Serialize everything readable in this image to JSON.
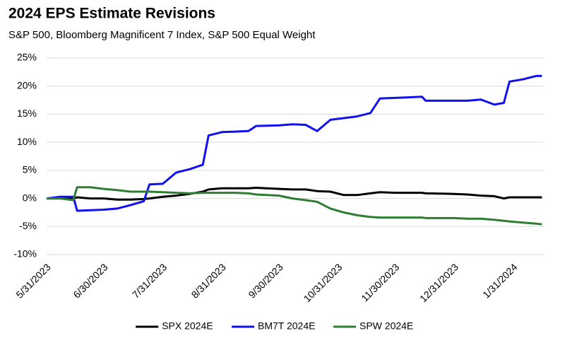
{
  "chart_data": {
    "type": "line",
    "title": "2024 EPS Estimate Revisions",
    "subtitle": "S&P 500, Bloomberg Magnificent 7 Index, S&P 500 Equal Weight",
    "x": [
      "5/31/2023",
      "6/7/2023",
      "6/14/2023",
      "6/16/2023",
      "6/23/2023",
      "6/30/2023",
      "7/7/2023",
      "7/14/2023",
      "7/21/2023",
      "7/24/2023",
      "7/31/2023",
      "8/7/2023",
      "8/14/2023",
      "8/21/2023",
      "8/24/2023",
      "8/31/2023",
      "9/7/2023",
      "9/14/2023",
      "9/18/2023",
      "9/30/2023",
      "10/7/2023",
      "10/14/2023",
      "10/20/2023",
      "10/27/2023",
      "11/3/2023",
      "11/10/2023",
      "11/17/2023",
      "11/22/2023",
      "11/30/2023",
      "12/7/2023",
      "12/14/2023",
      "12/16/2023",
      "12/31/2023",
      "1/7/2024",
      "1/14/2024",
      "1/21/2024",
      "1/26/2024",
      "1/29/2024",
      "2/5/2024",
      "2/12/2024",
      "2/15/2024"
    ],
    "series": [
      {
        "name": "SPX 2024E",
        "color": "#000000",
        "values": [
          0,
          0,
          0,
          0.2,
          0,
          0,
          -0.2,
          -0.2,
          -0.1,
          0,
          0.3,
          0.5,
          0.8,
          1.2,
          1.6,
          1.8,
          1.8,
          1.8,
          1.9,
          1.7,
          1.6,
          1.6,
          1.3,
          1.2,
          0.6,
          0.6,
          0.9,
          1.1,
          1.0,
          1.0,
          1.0,
          0.9,
          0.8,
          0.7,
          0.5,
          0.4,
          0,
          0.2,
          0.2,
          0.2,
          0.2
        ]
      },
      {
        "name": "BM7T 2024E",
        "color": "#1010f0",
        "values": [
          0,
          0.3,
          0.3,
          -2.2,
          -2.1,
          -2.0,
          -1.8,
          -1.2,
          -0.5,
          2.5,
          2.6,
          4.6,
          5.2,
          6.0,
          11.2,
          11.8,
          11.9,
          12.0,
          12.9,
          13.0,
          13.2,
          13.1,
          12.0,
          14.0,
          14.3,
          14.6,
          15.2,
          17.8,
          17.9,
          18.0,
          18.1,
          17.4,
          17.4,
          17.4,
          17.6,
          16.7,
          17.0,
          20.8,
          21.2,
          21.8,
          21.8
        ]
      },
      {
        "name": "SPW 2024E",
        "color": "#2e7d32",
        "values": [
          0,
          0,
          -0.3,
          2.0,
          2.0,
          1.7,
          1.5,
          1.2,
          1.2,
          1.2,
          1.1,
          1.0,
          0.9,
          1.0,
          1.0,
          1.0,
          1.0,
          0.9,
          0.7,
          0.5,
          0,
          -0.3,
          -0.6,
          -1.8,
          -2.5,
          -3.0,
          -3.3,
          -3.4,
          -3.4,
          -3.4,
          -3.4,
          -3.5,
          -3.5,
          -3.6,
          -3.6,
          -3.8,
          -4.0,
          -4.1,
          -4.3,
          -4.5,
          -4.6
        ]
      }
    ],
    "xlim": [
      "5/31/2023",
      "2/16/2024"
    ],
    "xticks": [
      "5/31/2023",
      "6/30/2023",
      "7/31/2023",
      "8/31/2023",
      "9/30/2023",
      "10/31/2023",
      "11/30/2023",
      "12/31/2023",
      "1/31/2024"
    ],
    "ylim": [
      -10,
      25
    ],
    "yticks": [
      {
        "value": -10,
        "label": "-10%"
      },
      {
        "value": -5,
        "label": "-5%"
      },
      {
        "value": 0,
        "label": "0%"
      },
      {
        "value": 5,
        "label": "5%"
      },
      {
        "value": 10,
        "label": "10%"
      },
      {
        "value": 15,
        "label": "15%"
      },
      {
        "value": 20,
        "label": "20%"
      },
      {
        "value": 25,
        "label": "25%"
      }
    ],
    "grid": true,
    "legend": "bottom"
  }
}
